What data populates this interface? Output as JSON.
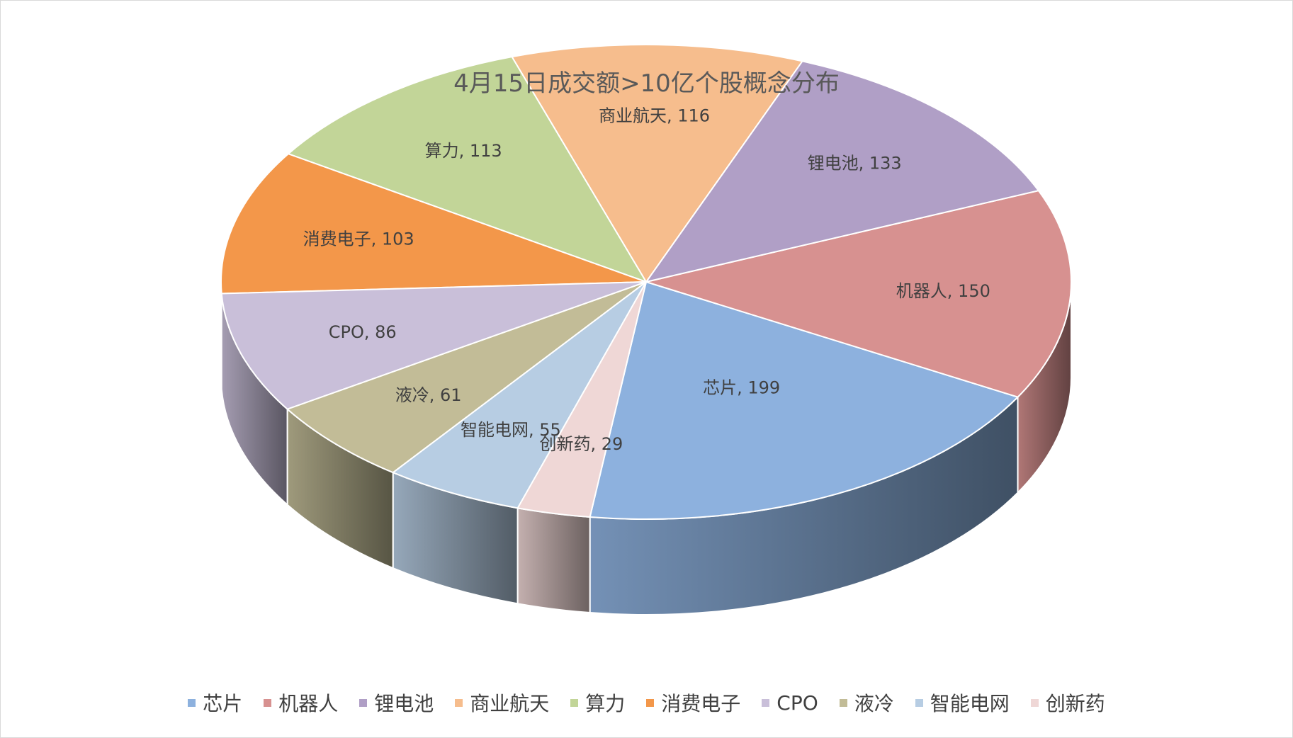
{
  "chart_data": {
    "type": "pie",
    "title": "4月15日成交额>10亿个股概念分布",
    "categories": [
      "芯片",
      "机器人",
      "锂电池",
      "商业航天",
      "算力",
      "消费电子",
      "CPO",
      "液冷",
      "智能电网",
      "创新药"
    ],
    "values": [
      199,
      150,
      133,
      116,
      113,
      103,
      86,
      61,
      55,
      29
    ],
    "data_labels": [
      "芯片, 199",
      "机器人, 150",
      "锂电池, 133",
      "商业航天, 116",
      "算力, 113",
      "消费电子, 103",
      "CPO, 86",
      "液冷, 61",
      "智能电网, 55",
      "创新药, 29"
    ],
    "colors": [
      "#8db1de",
      "#d79190",
      "#b09fc6",
      "#f6bd8d",
      "#c2d598",
      "#f3974a",
      "#c9bfd9",
      "#c2bc97",
      "#b7cde3",
      "#efd7d6"
    ],
    "legend_position": "bottom",
    "three_d": true
  }
}
